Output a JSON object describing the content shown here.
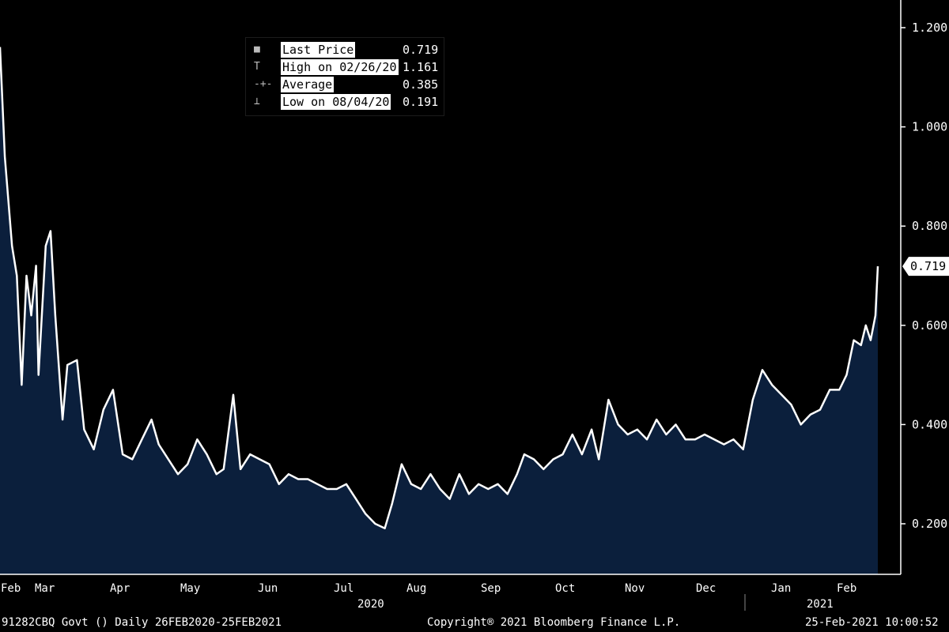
{
  "legend": {
    "items": [
      {
        "glyph": "■",
        "icon": "square-marker-icon",
        "label": "Last Price",
        "value": "0.719"
      },
      {
        "glyph": "T",
        "icon": "high-marker-icon",
        "label": "High on 02/26/20",
        "value": "1.161"
      },
      {
        "glyph": "-+-",
        "icon": "average-marker-icon",
        "label": "Average",
        "value": "0.385"
      },
      {
        "glyph": "⊥",
        "icon": "low-marker-icon",
        "label": "Low on 08/04/20",
        "value": "0.191"
      }
    ]
  },
  "footer": {
    "ticker": "91282CBQ Govt ()  Daily 26FEB2020-25FEB2021",
    "copyright": "Copyright® 2021 Bloomberg Finance L.P.",
    "timestamp": "25-Feb-2021 10:00:52"
  },
  "colors": {
    "background": "#000000",
    "line": "#ffffff",
    "area": "#0b1f3c",
    "text": "#ffffff"
  },
  "chart_data": {
    "type": "area",
    "x_ticks": [
      "Feb",
      "Mar",
      "Apr",
      "May",
      "Jun",
      "Jul",
      "Aug",
      "Sep",
      "Oct",
      "Nov",
      "Dec",
      "Jan",
      "Feb"
    ],
    "year_labels": [
      "2020",
      "2021"
    ],
    "y_ticks": [
      "1.200",
      "1.000",
      "0.800",
      "0.600",
      "0.400",
      "0.200"
    ],
    "ylim": [
      0.1,
      1.25
    ],
    "last_value_label": "0.719",
    "grid": false,
    "legend_position": "top-left",
    "series": [
      {
        "color": "#ffffff",
        "points": [
          [
            "2020-02-26",
            1.161
          ],
          [
            "2020-02-28",
            0.94
          ],
          [
            "2020-03-02",
            0.76
          ],
          [
            "2020-03-04",
            0.7
          ],
          [
            "2020-03-06",
            0.48
          ],
          [
            "2020-03-08",
            0.7
          ],
          [
            "2020-03-10",
            0.62
          ],
          [
            "2020-03-12",
            0.72
          ],
          [
            "2020-03-13",
            0.5
          ],
          [
            "2020-03-16",
            0.76
          ],
          [
            "2020-03-18",
            0.79
          ],
          [
            "2020-03-20",
            0.62
          ],
          [
            "2020-03-23",
            0.41
          ],
          [
            "2020-03-25",
            0.52
          ],
          [
            "2020-03-29",
            0.53
          ],
          [
            "2020-04-01",
            0.39
          ],
          [
            "2020-04-05",
            0.35
          ],
          [
            "2020-04-09",
            0.43
          ],
          [
            "2020-04-13",
            0.47
          ],
          [
            "2020-04-17",
            0.34
          ],
          [
            "2020-04-21",
            0.33
          ],
          [
            "2020-04-25",
            0.37
          ],
          [
            "2020-04-29",
            0.41
          ],
          [
            "2020-05-02",
            0.36
          ],
          [
            "2020-05-06",
            0.33
          ],
          [
            "2020-05-10",
            0.3
          ],
          [
            "2020-05-14",
            0.32
          ],
          [
            "2020-05-18",
            0.37
          ],
          [
            "2020-05-22",
            0.34
          ],
          [
            "2020-05-26",
            0.3
          ],
          [
            "2020-05-29",
            0.31
          ],
          [
            "2020-06-02",
            0.46
          ],
          [
            "2020-06-05",
            0.31
          ],
          [
            "2020-06-09",
            0.34
          ],
          [
            "2020-06-13",
            0.33
          ],
          [
            "2020-06-17",
            0.32
          ],
          [
            "2020-06-21",
            0.28
          ],
          [
            "2020-06-25",
            0.3
          ],
          [
            "2020-06-29",
            0.29
          ],
          [
            "2020-07-03",
            0.29
          ],
          [
            "2020-07-07",
            0.28
          ],
          [
            "2020-07-11",
            0.27
          ],
          [
            "2020-07-15",
            0.27
          ],
          [
            "2020-07-19",
            0.28
          ],
          [
            "2020-07-23",
            0.25
          ],
          [
            "2020-07-27",
            0.22
          ],
          [
            "2020-07-31",
            0.2
          ],
          [
            "2020-08-04",
            0.191
          ],
          [
            "2020-08-07",
            0.24
          ],
          [
            "2020-08-11",
            0.32
          ],
          [
            "2020-08-15",
            0.28
          ],
          [
            "2020-08-19",
            0.27
          ],
          [
            "2020-08-23",
            0.3
          ],
          [
            "2020-08-27",
            0.27
          ],
          [
            "2020-08-31",
            0.25
          ],
          [
            "2020-09-04",
            0.3
          ],
          [
            "2020-09-08",
            0.26
          ],
          [
            "2020-09-12",
            0.28
          ],
          [
            "2020-09-16",
            0.27
          ],
          [
            "2020-09-20",
            0.28
          ],
          [
            "2020-09-24",
            0.26
          ],
          [
            "2020-09-28",
            0.3
          ],
          [
            "2020-10-01",
            0.34
          ],
          [
            "2020-10-05",
            0.33
          ],
          [
            "2020-10-09",
            0.31
          ],
          [
            "2020-10-13",
            0.33
          ],
          [
            "2020-10-17",
            0.34
          ],
          [
            "2020-10-21",
            0.38
          ],
          [
            "2020-10-25",
            0.34
          ],
          [
            "2020-10-29",
            0.39
          ],
          [
            "2020-11-01",
            0.33
          ],
          [
            "2020-11-05",
            0.45
          ],
          [
            "2020-11-09",
            0.4
          ],
          [
            "2020-11-13",
            0.38
          ],
          [
            "2020-11-17",
            0.39
          ],
          [
            "2020-11-21",
            0.37
          ],
          [
            "2020-11-25",
            0.41
          ],
          [
            "2020-11-29",
            0.38
          ],
          [
            "2020-12-03",
            0.4
          ],
          [
            "2020-12-07",
            0.37
          ],
          [
            "2020-12-11",
            0.37
          ],
          [
            "2020-12-15",
            0.38
          ],
          [
            "2020-12-19",
            0.37
          ],
          [
            "2020-12-23",
            0.36
          ],
          [
            "2020-12-27",
            0.37
          ],
          [
            "2020-12-31",
            0.35
          ],
          [
            "2021-01-04",
            0.45
          ],
          [
            "2021-01-08",
            0.51
          ],
          [
            "2021-01-12",
            0.48
          ],
          [
            "2021-01-16",
            0.46
          ],
          [
            "2021-01-20",
            0.44
          ],
          [
            "2021-01-24",
            0.4
          ],
          [
            "2021-01-28",
            0.42
          ],
          [
            "2021-02-01",
            0.43
          ],
          [
            "2021-02-05",
            0.47
          ],
          [
            "2021-02-09",
            0.47
          ],
          [
            "2021-02-12",
            0.5
          ],
          [
            "2021-02-15",
            0.57
          ],
          [
            "2021-02-18",
            0.56
          ],
          [
            "2021-02-20",
            0.6
          ],
          [
            "2021-02-22",
            0.57
          ],
          [
            "2021-02-24",
            0.62
          ],
          [
            "2021-02-25",
            0.719
          ]
        ]
      }
    ]
  }
}
